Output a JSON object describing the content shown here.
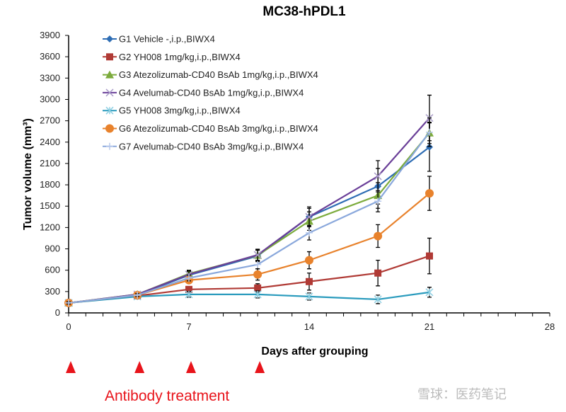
{
  "chart_data": {
    "type": "line",
    "title": "MC38-hPDL1",
    "xlabel": "Days after grouping",
    "ylabel": "Tumor volume (mm³)",
    "xlim": [
      0,
      28
    ],
    "ylim": [
      0,
      3900
    ],
    "xticks": [
      0,
      7,
      14,
      21,
      28
    ],
    "yticks": [
      0,
      300,
      600,
      900,
      1200,
      1500,
      1800,
      2100,
      2400,
      2700,
      3000,
      3300,
      3600,
      3900
    ],
    "grid": false,
    "legend_position": "top-left",
    "x": [
      0,
      4,
      7,
      11,
      14,
      18,
      21
    ],
    "series": [
      {
        "name": "G1 Vehicle -,i.p.,BIWX4",
        "color": "#2e6db4",
        "marker": "diamond",
        "values": [
          140,
          250,
          530,
          800,
          1350,
          1780,
          2330
        ],
        "errors": [
          15,
          25,
          50,
          80,
          120,
          250,
          340
        ]
      },
      {
        "name": "G2 YH008 1mg/kg,i.p.,BIWX4",
        "color": "#b03a35",
        "marker": "square",
        "values": [
          140,
          240,
          330,
          350,
          440,
          560,
          800
        ],
        "errors": [
          15,
          20,
          40,
          60,
          120,
          180,
          250
        ]
      },
      {
        "name": "G3 Atezolizumab-CD40 BsAb 1mg/kg,i.p.,BIWX4",
        "color": "#7cab3c",
        "marker": "triangle",
        "values": [
          140,
          260,
          550,
          810,
          1290,
          1650,
          2530
        ],
        "errors": [
          15,
          25,
          50,
          80,
          130,
          180,
          150
        ]
      },
      {
        "name": "G4 Avelumab-CD40 BsAb 1mg/kg,i.p.,BIWX4",
        "color": "#6a3f98",
        "marker": "x",
        "values": [
          140,
          260,
          540,
          815,
          1350,
          1920,
          2740
        ],
        "errors": [
          15,
          25,
          50,
          80,
          140,
          220,
          320
        ]
      },
      {
        "name": "G5 YH008 3mg/kg,i.p.,BIWX4",
        "color": "#2a9bbd",
        "marker": "asterisk",
        "values": [
          140,
          230,
          260,
          260,
          230,
          190,
          290
        ],
        "errors": [
          15,
          20,
          40,
          50,
          50,
          60,
          70
        ]
      },
      {
        "name": "G6 Atezolizumab-CD40 BsAb 3mg/kg,i.p.,BIWX4",
        "color": "#e8822c",
        "marker": "circle",
        "values": [
          140,
          250,
          460,
          540,
          740,
          1080,
          1680
        ],
        "errors": [
          15,
          20,
          40,
          80,
          120,
          160,
          240
        ]
      },
      {
        "name": "G7 Avelumab-CD40 BsAb 3mg/kg,i.p.,BIWX4",
        "color": "#8aa8dc",
        "marker": "plus",
        "values": [
          140,
          250,
          490,
          680,
          1125,
          1570,
          2540
        ],
        "errors": [
          15,
          20,
          40,
          60,
          100,
          150,
          200
        ]
      }
    ],
    "annotation": {
      "text": "Antibody treatment",
      "treatment_days": [
        0,
        4,
        7,
        11
      ],
      "color": "#e8141b"
    }
  },
  "watermark": "雪球：医药笔记"
}
